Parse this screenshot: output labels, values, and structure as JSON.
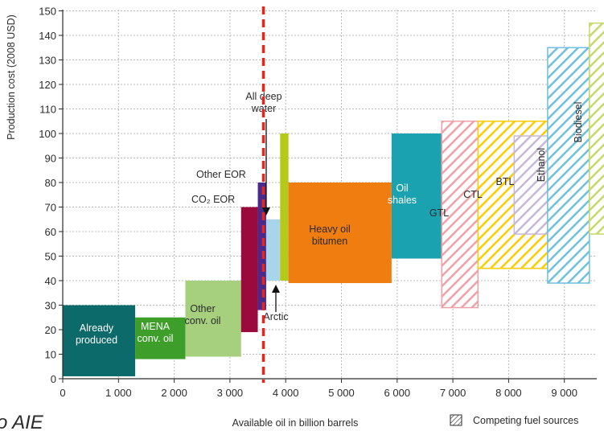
{
  "chart_data": {
    "type": "bar",
    "ylabel": "Production cost (2008 USD)",
    "xlabel": "Available oil in billion barrels",
    "ylim": [
      0,
      150
    ],
    "xlim": [
      0,
      9500
    ],
    "y_ticks": [
      "0",
      "10",
      "20",
      "30",
      "40",
      "50",
      "60",
      "70",
      "80",
      "90",
      "100",
      "110",
      "120",
      "130",
      "140",
      "150"
    ],
    "x_ticks": [
      "0",
      "1 000",
      "2 000",
      "3 000",
      "4 000",
      "5 000",
      "6 000",
      "7 000",
      "8 000",
      "9 000"
    ],
    "grid": true,
    "reference_line": {
      "x": 3600,
      "color": "#e8241c",
      "style": "dashed"
    },
    "legend": {
      "label": "Competing fuel sources",
      "placement": "bottom-right"
    },
    "corner_text": "o AIE",
    "blocks": [
      {
        "id": "already",
        "label_lines": [
          "Already",
          "produced"
        ],
        "x0": 0,
        "x1": 1300,
        "y0": 1,
        "y1": 30,
        "color": "#0c6a6a",
        "label_color": "#ffffff",
        "hatched": false
      },
      {
        "id": "mena",
        "label_lines": [
          "MENA",
          "conv. oil"
        ],
        "x0": 1300,
        "x1": 2200,
        "y0": 8,
        "y1": 25,
        "color": "#3d9e2a",
        "label_color": "#ffffff",
        "hatched": false
      },
      {
        "id": "other_conv",
        "label_lines": [
          "Other",
          "conv. oil"
        ],
        "x0": 2200,
        "x1": 3200,
        "y0": 9,
        "y1": 40,
        "color": "#a6d07e",
        "label_color": "#2b2b2b",
        "hatched": false
      },
      {
        "id": "co2_eor",
        "label_lines": [
          "CO₂ EOR"
        ],
        "x0": 3200,
        "x1": 3500,
        "y0": 19,
        "y1": 70,
        "color": "#9b0a3c",
        "label_color": "#2b2b2b",
        "label_outside": "left",
        "hatched": false
      },
      {
        "id": "other_eor",
        "label_lines": [
          "Other EOR"
        ],
        "x0": 3500,
        "x1": 3650,
        "y0": 28,
        "y1": 80,
        "color": "#4b2a8c",
        "label_color": "#2b2b2b",
        "label_outside": "left",
        "hatched": false
      },
      {
        "id": "deep_water",
        "label_lines": [
          "All deep",
          "water"
        ],
        "x0": 3650,
        "x1": 3900,
        "y0": 40,
        "y1": 65,
        "color": "#a8d4ec",
        "label_color": "#2b2b2b",
        "label_outside": "top-arrow",
        "hatched": false
      },
      {
        "id": "arctic",
        "label_lines": [
          "Arctic"
        ],
        "x0": 3900,
        "x1": 4050,
        "y0": 40,
        "y1": 100,
        "color": "#b5c918",
        "label_color": "#2b2b2b",
        "label_outside": "bottom-arrow",
        "hatched": false
      },
      {
        "id": "heavy_oil",
        "label_lines": [
          "Heavy oil",
          "bitumen"
        ],
        "x0": 4050,
        "x1": 5900,
        "y0": 39,
        "y1": 80,
        "color": "#ef7d0f",
        "label_color": "#2b2b2b",
        "hatched": false
      },
      {
        "id": "oil_shales",
        "label_lines": [
          "Oil",
          "shales"
        ],
        "x0": 5900,
        "x1": 6800,
        "y0": 49,
        "y1": 100,
        "color": "#1aa2b0",
        "label_color": "#ffffff",
        "hatched": false
      },
      {
        "id": "gtl",
        "label_lines": [
          "GTL"
        ],
        "x0": 6800,
        "x1": 7450,
        "y0": 29,
        "y1": 105,
        "color": "#f2a0a6",
        "label_color": "#2b2b2b",
        "hatched": true
      },
      {
        "id": "ctl",
        "label_lines": [
          "CTL"
        ],
        "x0": 7450,
        "x1": 8700,
        "y0": 45,
        "y1": 105,
        "color": "#ffcc00",
        "label_color": "#2b2b2b",
        "hatched": true
      },
      {
        "id": "btl",
        "label_lines": [
          "BTL"
        ],
        "x0": 8100,
        "x1": 8700,
        "y0": 59,
        "y1": 99,
        "color": "#c7b8d9",
        "label_color": "#2b2b2b",
        "hatched": true
      },
      {
        "id": "ethanol",
        "label_lines": [
          "Ethanol"
        ],
        "x0": 8700,
        "x1": 9450,
        "y0": 39,
        "y1": 135,
        "color": "#6ec0e0",
        "label_color": "#2b2b2b",
        "vertical_label": true,
        "hatched": true
      },
      {
        "id": "biodiesel",
        "label_lines": [
          "Biodiesel"
        ],
        "x0": 9450,
        "x1": 10400,
        "y0": 59,
        "y1": 145,
        "color": "#c6d96a",
        "label_color": "#2b2b2b",
        "vertical_label": true,
        "hatched": true
      }
    ]
  }
}
